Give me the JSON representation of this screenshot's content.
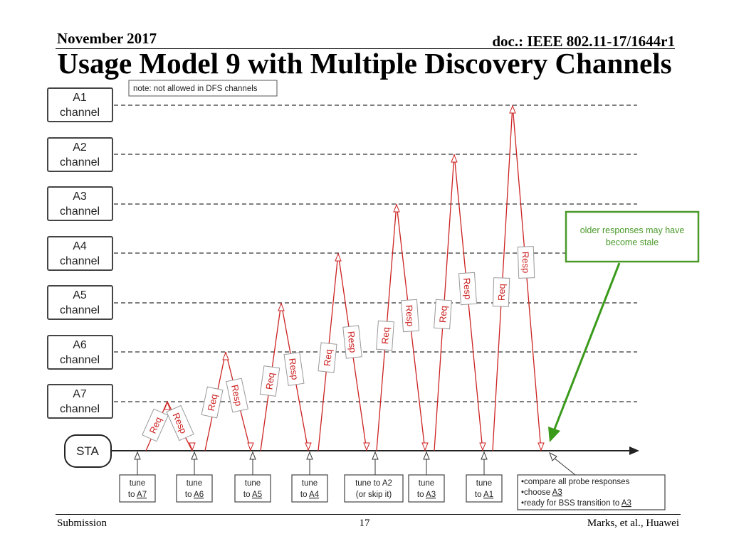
{
  "header": {
    "date": "November 2017",
    "doc": "doc.: IEEE 802.11-17/1644r1",
    "title": "Usage Model 9 with Multiple Discovery Channels"
  },
  "footer": {
    "left": "Submission",
    "page": "17",
    "right": "Marks, et al., Huawei"
  },
  "diagram": {
    "note": "note: not allowed in DFS channels",
    "sta_label": "STA",
    "channels": [
      {
        "name": "A1",
        "sub": "channel"
      },
      {
        "name": "A2",
        "sub": "channel"
      },
      {
        "name": "A3",
        "sub": "channel"
      },
      {
        "name": "A4",
        "sub": "channel"
      },
      {
        "name": "A5",
        "sub": "channel"
      },
      {
        "name": "A6",
        "sub": "channel"
      },
      {
        "name": "A7",
        "sub": "channel"
      }
    ],
    "req_label": "Req",
    "resp_label": "Resp",
    "tune_boxes": [
      {
        "line1": "tune",
        "pre": "to ",
        "ch": "A7",
        "post": ""
      },
      {
        "line1": "tune",
        "pre": "to ",
        "ch": "A6",
        "post": ""
      },
      {
        "line1": "tune",
        "pre": "to ",
        "ch": "A5",
        "post": ""
      },
      {
        "line1": "tune",
        "pre": "to ",
        "ch": "A4",
        "post": ""
      },
      {
        "line1": "tune to A2",
        "pre": "(or skip it)",
        "ch": "",
        "post": ""
      },
      {
        "line1": "tune",
        "pre": "to ",
        "ch": "A3",
        "post": ""
      },
      {
        "line1": "tune",
        "pre": "to ",
        "ch": "A1",
        "post": ""
      }
    ],
    "final_box": {
      "line1": "•compare all probe responses",
      "line2_pre": "•choose ",
      "line2_ch": "A3",
      "line3_pre": "•ready for BSS transition to ",
      "line3_ch": "A3"
    },
    "stale_note": {
      "line1": "older responses may have",
      "line2": "become stale"
    },
    "colors": {
      "req_resp": "#cc2222",
      "stale_border": "#4a9a2a",
      "stale_text": "#4a9a2a",
      "arrow_green": "#3a9a1a"
    }
  }
}
